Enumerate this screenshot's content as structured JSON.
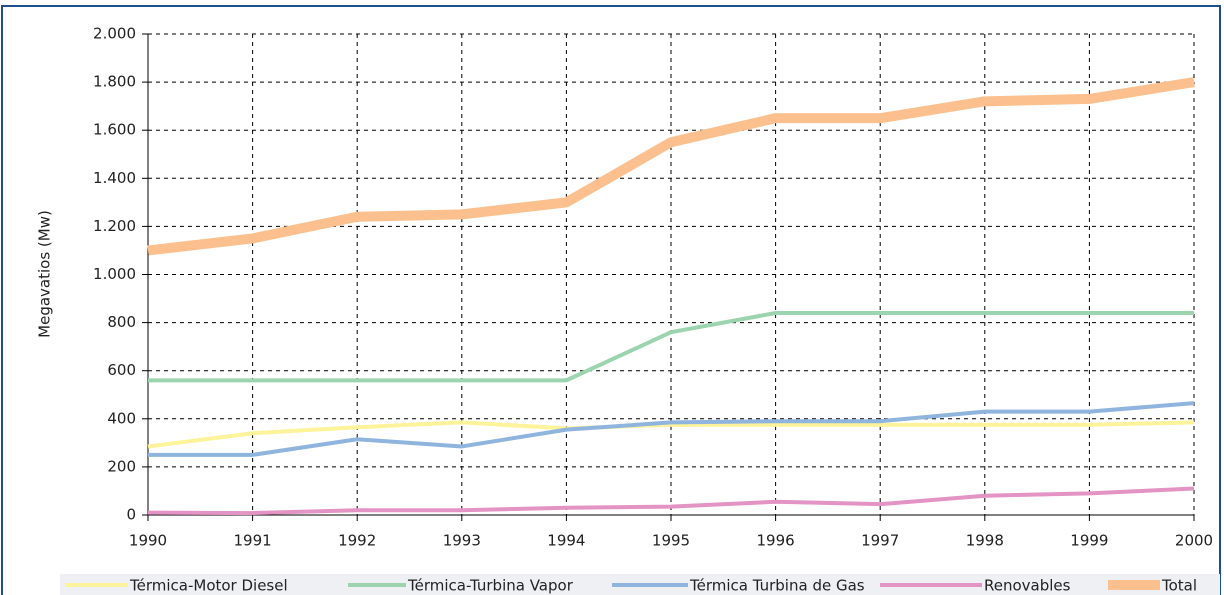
{
  "chart_data": {
    "type": "line",
    "y_label": "Megavatios (Mw)",
    "x": [
      1990,
      1991,
      1992,
      1993,
      1994,
      1995,
      1996,
      1997,
      1998,
      1999,
      2000
    ],
    "xlim": [
      1990,
      2000
    ],
    "xticks": [
      1990,
      1991,
      1992,
      1993,
      1994,
      1995,
      1996,
      1997,
      1998,
      1999,
      2000
    ],
    "ylim": [
      0,
      2000
    ],
    "yticks": [
      0,
      200,
      400,
      600,
      800,
      {
        "value": 1000,
        "label": "1.000"
      },
      {
        "value": 1200,
        "label": "1.200"
      },
      {
        "value": 1400,
        "label": "1.400"
      },
      {
        "value": 1600,
        "label": "1.600"
      },
      {
        "value": 1800,
        "label": "1.800"
      },
      {
        "value": 2000,
        "label": "2.000"
      }
    ],
    "grid": true,
    "legend": "bottom",
    "series": [
      {
        "name": "Térmica-Motor Diesel",
        "color": "#fdf39a",
        "width": 4,
        "values": [
          285,
          340,
          365,
          385,
          360,
          375,
          375,
          375,
          375,
          375,
          385
        ]
      },
      {
        "name": "Térmica-Turbina Vapor",
        "color": "#9bd4ae",
        "width": 4,
        "values": [
          560,
          560,
          560,
          560,
          560,
          760,
          840,
          840,
          840,
          840,
          840
        ]
      },
      {
        "name": "Térmica Turbina de Gas",
        "color": "#8fb4de",
        "width": 4,
        "values": [
          250,
          250,
          315,
          285,
          355,
          385,
          390,
          390,
          430,
          430,
          465
        ]
      },
      {
        "name": "Renovables",
        "color": "#e393c4",
        "width": 4,
        "values": [
          10,
          8,
          20,
          20,
          30,
          35,
          55,
          45,
          80,
          90,
          110
        ]
      },
      {
        "name": "Total",
        "color": "#fbc08e",
        "width": 10,
        "values": [
          1100,
          1150,
          1240,
          1250,
          1300,
          1550,
          1650,
          1650,
          1720,
          1730,
          1800
        ]
      }
    ]
  }
}
